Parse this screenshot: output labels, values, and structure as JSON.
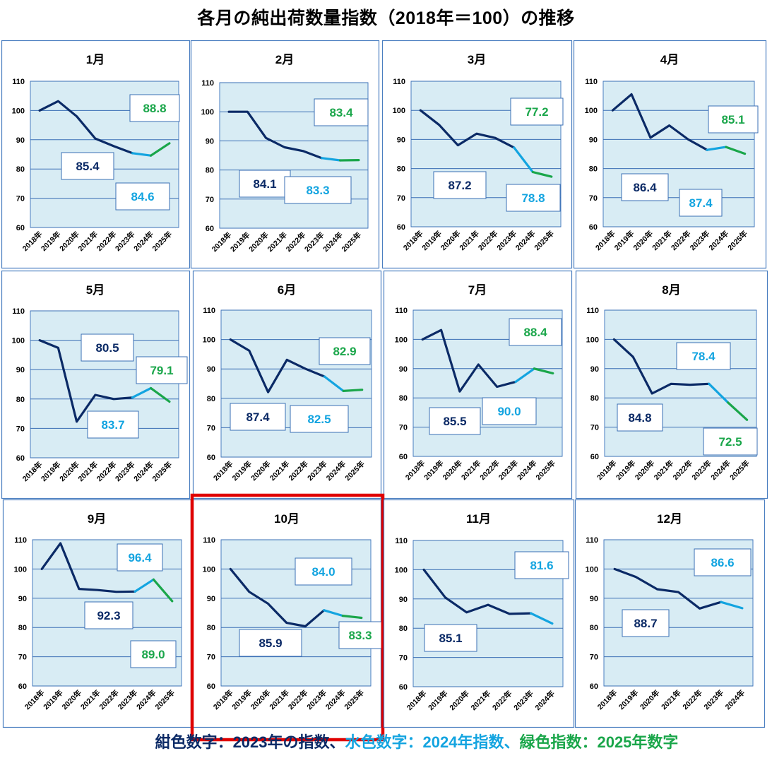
{
  "title": "各月の純出荷数量指数（2018年＝100）の推移",
  "caption": {
    "navy": "紺色数字：2023年の指数、",
    "cyan": "水色数字：2024年指数、",
    "green": "緑色指数：2025年数字"
  },
  "colors": {
    "navy": "#0b2a66",
    "cyan": "#13a4e0",
    "green": "#1aa64a",
    "plot_bg": "#d8ecf4",
    "panel_border": "#4a7ec0",
    "highlight": "#e00000"
  },
  "highlighted_month": "10月",
  "chart_data": [
    {
      "type": "line",
      "title": "1月",
      "categories": [
        "2018年",
        "2019年",
        "2020年",
        "2021年",
        "2022年",
        "2023年",
        "2024年",
        "2025年"
      ],
      "values": [
        100,
        103.2,
        98,
        90.4,
        87.8,
        85.4,
        84.6,
        88.8
      ],
      "ylim": [
        60,
        110
      ],
      "yticks": [
        60,
        70,
        80,
        90,
        100,
        110
      ],
      "labels": {
        "y2023": "85.4",
        "y2024": "84.6",
        "y2025": "88.8"
      }
    },
    {
      "type": "line",
      "title": "2月",
      "categories": [
        "2018年",
        "2019年",
        "2020年",
        "2021年",
        "2022年",
        "2023年",
        "2024年",
        "2025年"
      ],
      "values": [
        100,
        100,
        91,
        87.8,
        86.5,
        84.1,
        83.3,
        83.4
      ],
      "ylim": [
        60,
        110
      ],
      "yticks": [
        60,
        70,
        80,
        90,
        100,
        110
      ],
      "labels": {
        "y2023": "84.1",
        "y2024": "83.3",
        "y2025": "83.4"
      }
    },
    {
      "type": "line",
      "title": "3月",
      "categories": [
        "2018年",
        "2019年",
        "2020年",
        "2021年",
        "2022年",
        "2023年",
        "2024年",
        "2025年"
      ],
      "values": [
        100,
        95,
        88,
        92,
        90.5,
        87.2,
        78.8,
        77.2
      ],
      "ylim": [
        60,
        110
      ],
      "yticks": [
        60,
        70,
        80,
        90,
        100,
        110
      ],
      "labels": {
        "y2023": "87.2",
        "y2024": "78.8",
        "y2025": "77.2"
      }
    },
    {
      "type": "line",
      "title": "4月",
      "categories": [
        "2018年",
        "2019年",
        "2020年",
        "2021年",
        "2022年",
        "2023年",
        "2024年",
        "2025年"
      ],
      "values": [
        100,
        105.5,
        90.6,
        94.8,
        90,
        86.4,
        87.4,
        85.1
      ],
      "ylim": [
        60,
        110
      ],
      "yticks": [
        60,
        70,
        80,
        90,
        100,
        110
      ],
      "labels": {
        "y2023": "86.4",
        "y2024": "87.4",
        "y2025": "85.1"
      }
    },
    {
      "type": "line",
      "title": "5月",
      "categories": [
        "2018年",
        "2019年",
        "2020年",
        "2021年",
        "2022年",
        "2023年",
        "2024年",
        "2025年"
      ],
      "values": [
        100,
        97.4,
        72.3,
        81.4,
        80,
        80.5,
        83.7,
        79.1
      ],
      "ylim": [
        60,
        110
      ],
      "yticks": [
        60,
        70,
        80,
        90,
        100,
        110
      ],
      "labels": {
        "y2023": "80.5",
        "y2024": "83.7",
        "y2025": "79.1"
      }
    },
    {
      "type": "line",
      "title": "6月",
      "categories": [
        "2018年",
        "2019年",
        "2020年",
        "2021年",
        "2022年",
        "2023年",
        "2024年",
        "2025年"
      ],
      "values": [
        100,
        96.2,
        82.1,
        93.1,
        90,
        87.4,
        82.5,
        82.9
      ],
      "ylim": [
        60,
        110
      ],
      "yticks": [
        60,
        70,
        80,
        90,
        100,
        110
      ],
      "labels": {
        "y2023": "87.4",
        "y2024": "82.5",
        "y2025": "82.9"
      }
    },
    {
      "type": "line",
      "title": "7月",
      "categories": [
        "2018年",
        "2019年",
        "2020年",
        "2021年",
        "2022年",
        "2023年",
        "2024年",
        "2025年"
      ],
      "values": [
        100,
        103.2,
        82.2,
        91.4,
        83.8,
        85.5,
        90,
        88.4
      ],
      "ylim": [
        60,
        110
      ],
      "yticks": [
        60,
        70,
        80,
        90,
        100,
        110
      ],
      "labels": {
        "y2023": "85.5",
        "y2024": "90.0",
        "y2025": "88.4"
      }
    },
    {
      "type": "line",
      "title": "8月",
      "categories": [
        "2018年",
        "2019年",
        "2020年",
        "2021年",
        "2022年",
        "2023年",
        "2024年",
        "2025年"
      ],
      "values": [
        100,
        94,
        81.5,
        84.8,
        84.5,
        84.8,
        78.4,
        72.5
      ],
      "ylim": [
        60,
        110
      ],
      "yticks": [
        60,
        70,
        80,
        90,
        100,
        110
      ],
      "labels": {
        "y2023": "84.8",
        "y2024": "78.4",
        "y2025": "72.5"
      }
    },
    {
      "type": "line",
      "title": "9月",
      "categories": [
        "2018年",
        "2019年",
        "2020年",
        "2021年",
        "2022年",
        "2023年",
        "2024年",
        "2025年"
      ],
      "values": [
        100,
        108.8,
        93.2,
        92.8,
        92.2,
        92.3,
        96.4,
        89
      ],
      "ylim": [
        60,
        110
      ],
      "yticks": [
        60,
        70,
        80,
        90,
        100,
        110
      ],
      "labels": {
        "y2023": "92.3",
        "y2024": "96.4",
        "y2025": "89.0"
      }
    },
    {
      "type": "line",
      "title": "10月",
      "categories": [
        "2018年",
        "2019年",
        "2020年",
        "2021年",
        "2022年",
        "2023年",
        "2024年",
        "2025年"
      ],
      "values": [
        100,
        92.2,
        88.2,
        81.6,
        80.4,
        85.9,
        84,
        83.3
      ],
      "ylim": [
        60,
        110
      ],
      "yticks": [
        60,
        70,
        80,
        90,
        100,
        110
      ],
      "labels": {
        "y2023": "85.9",
        "y2024": "84.0",
        "y2025": "83.3"
      }
    },
    {
      "type": "line",
      "title": "11月",
      "categories": [
        "2018年",
        "2019年",
        "2020年",
        "2021年",
        "2022年",
        "2023年",
        "2024年"
      ],
      "values": [
        100,
        90.5,
        85.4,
        88,
        84.9,
        85.1,
        81.6
      ],
      "ylim": [
        60,
        110
      ],
      "yticks": [
        60,
        70,
        80,
        90,
        100,
        110
      ],
      "labels": {
        "y2023": "85.1",
        "y2024": "81.6"
      }
    },
    {
      "type": "line",
      "title": "12月",
      "categories": [
        "2018年",
        "2019年",
        "2020年",
        "2021年",
        "2022年",
        "2023年",
        "2024年"
      ],
      "values": [
        100,
        97.3,
        93.1,
        92.1,
        86.5,
        88.7,
        86.6
      ],
      "ylim": [
        60,
        110
      ],
      "yticks": [
        60,
        70,
        80,
        90,
        100,
        110
      ],
      "labels": {
        "y2023": "88.7",
        "y2024": "86.6"
      }
    }
  ]
}
